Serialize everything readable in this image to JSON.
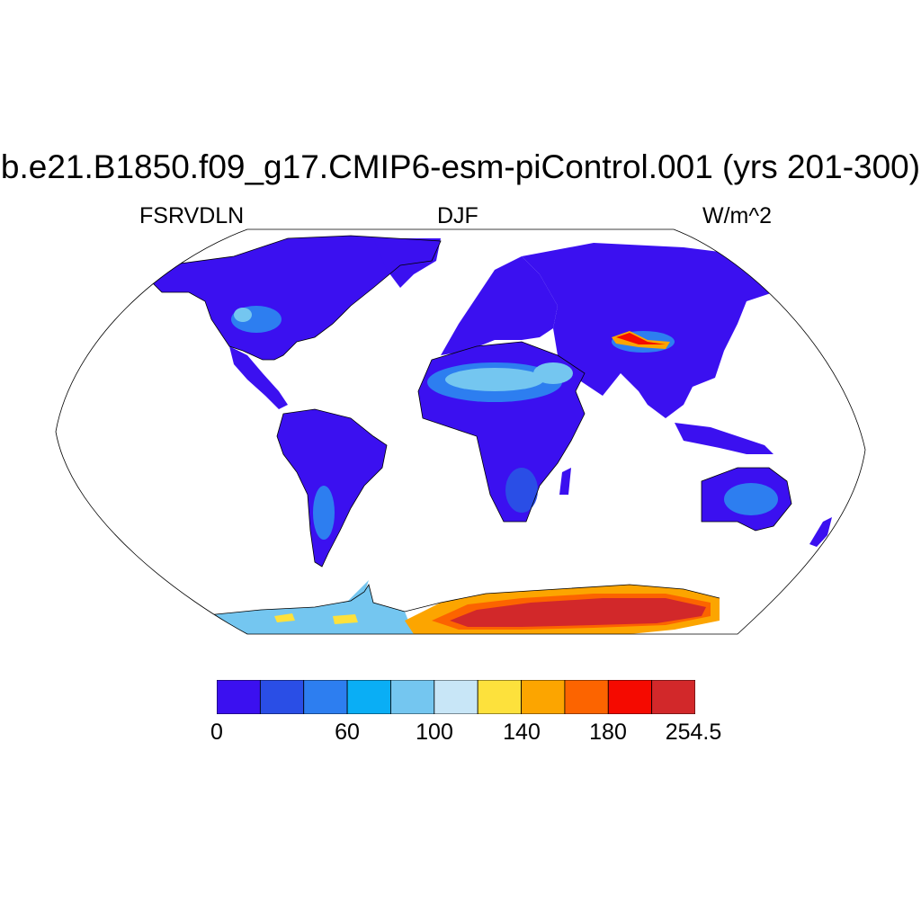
{
  "title": "b.e21.B1850.f09_g17.CMIP6-esm-piControl.001 (yrs 201-300)",
  "left_label": "FSRVDLN",
  "center_label": "DJF",
  "right_label": "W/m^2",
  "colorbar": {
    "colors": [
      "#3b10f0",
      "#2a4ee6",
      "#2d7ef0",
      "#0aaef5",
      "#74c6f0",
      "#c8e6f7",
      "#fde13c",
      "#fca500",
      "#fc6400",
      "#f50a00",
      "#d2282a"
    ],
    "labels": [
      "0",
      "60",
      "100",
      "140",
      "180",
      "254.5"
    ]
  },
  "map": {
    "projection": "Robinson",
    "ocean_color": "#ffffff",
    "land_base_color": "#3b10f0"
  }
}
